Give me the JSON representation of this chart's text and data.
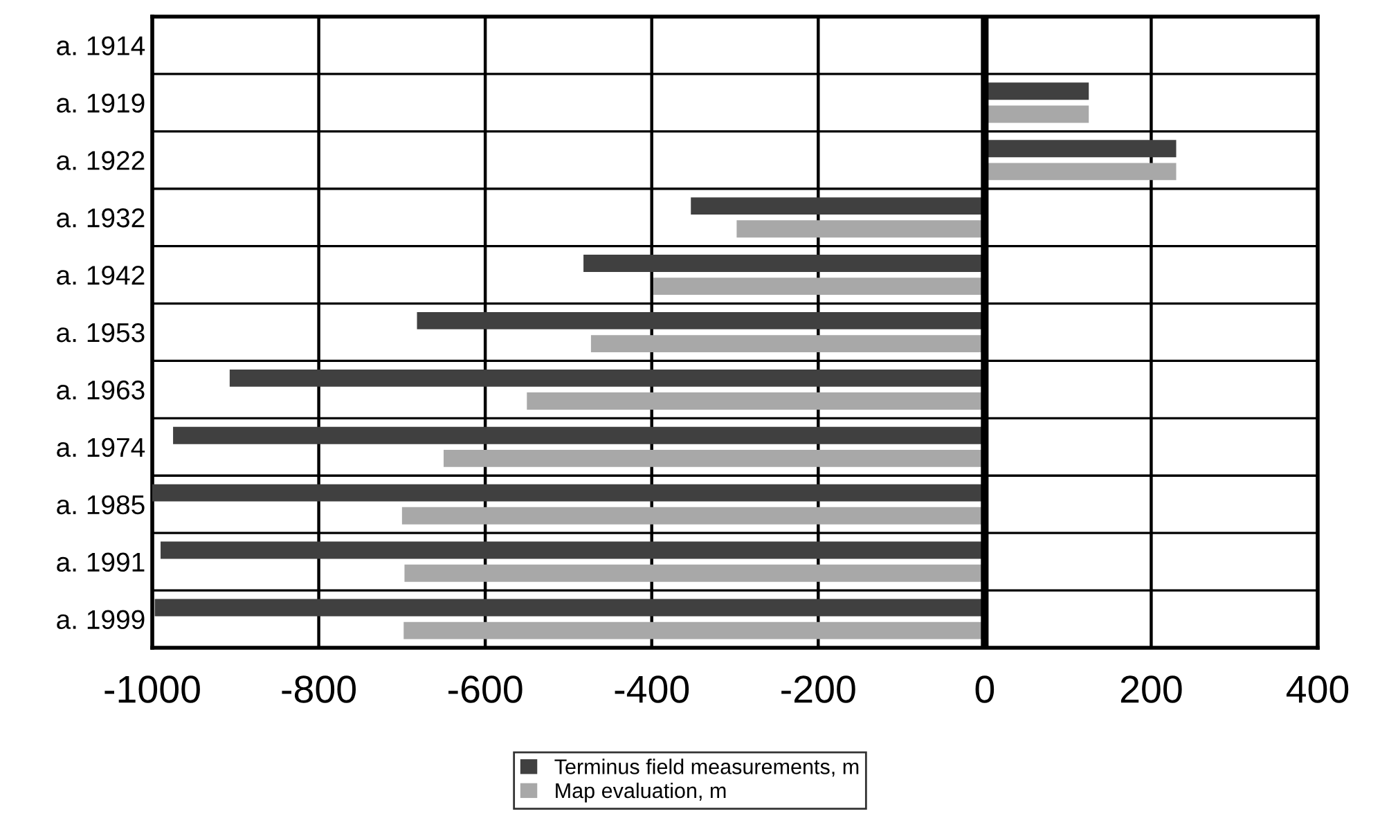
{
  "chart_data": {
    "type": "bar",
    "orientation": "horizontal",
    "categories": [
      "a. 1914",
      "a. 1919",
      "a. 1922",
      "a. 1932",
      "a. 1942",
      "a. 1953",
      "a. 1963",
      "a. 1974",
      "a. 1985",
      "a. 1991",
      "a. 1999"
    ],
    "series": [
      {
        "name": "Terminus field measurements, m",
        "color": "#404040",
        "values": [
          null,
          125,
          230,
          -353,
          -482,
          -682,
          -907,
          -975,
          -1000,
          -990,
          -997
        ]
      },
      {
        "name": "Map evaluation, m",
        "color": "#a8a8a8",
        "values": [
          null,
          125,
          230,
          -298,
          -398,
          -473,
          -550,
          -650,
          -700,
          -697,
          -698
        ]
      }
    ],
    "xlim": [
      -1000,
      400
    ],
    "xticks": [
      -1000,
      -800,
      -600,
      -400,
      -200,
      0,
      200,
      400
    ],
    "grid": true,
    "legend": "bottom",
    "ref_lines": [
      {
        "axis": "x",
        "value": 0,
        "color": "#000000"
      }
    ]
  }
}
